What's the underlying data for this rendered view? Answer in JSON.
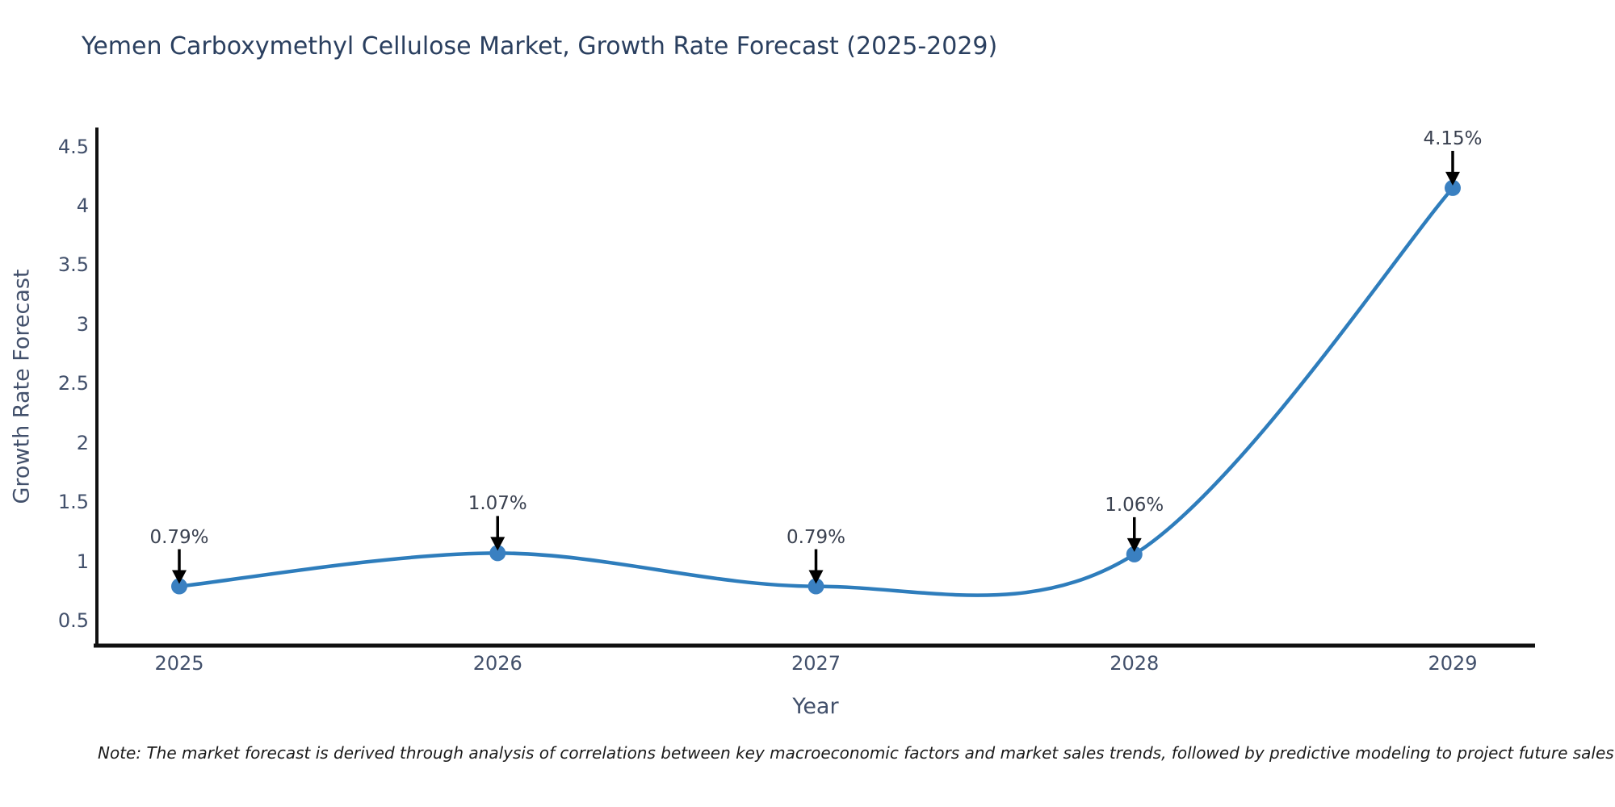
{
  "title": "Yemen Carboxymethyl Cellulose Market, Growth Rate Forecast (2025-2029)",
  "note": "Note: The market forecast is derived through analysis of correlations between key macroeconomic factors and market sales trends, followed by predictive modeling to project future sales",
  "chart_data": {
    "type": "line",
    "line_shape": "spline",
    "title": "Yemen Carboxymethyl Cellulose Market, Growth Rate Forecast (2025-2029)",
    "xlabel": "Year",
    "ylabel": "Growth Rate Forecast",
    "categories": [
      "2025",
      "2026",
      "2027",
      "2028",
      "2029"
    ],
    "values": [
      0.79,
      1.07,
      0.79,
      1.06,
      4.15
    ],
    "point_labels": [
      "0.79%",
      "1.07%",
      "0.79%",
      "1.06%",
      "4.15%"
    ],
    "yticks": [
      0.5,
      1,
      1.5,
      2,
      2.5,
      3,
      3.5,
      4,
      4.5
    ],
    "ylim": [
      0.29,
      4.66
    ],
    "grid": false,
    "legend": false,
    "annotations": "black arrows pointing down at each data point with percentage label above",
    "colors": {
      "line": "#2e7dbc",
      "marker": "#3a80c1",
      "axis": "#111111",
      "arrow": "#000000",
      "tick_text": "#42506b",
      "title_text": "#2a3f5f",
      "note_text": "#1a1a1a",
      "background": "#ffffff"
    }
  }
}
